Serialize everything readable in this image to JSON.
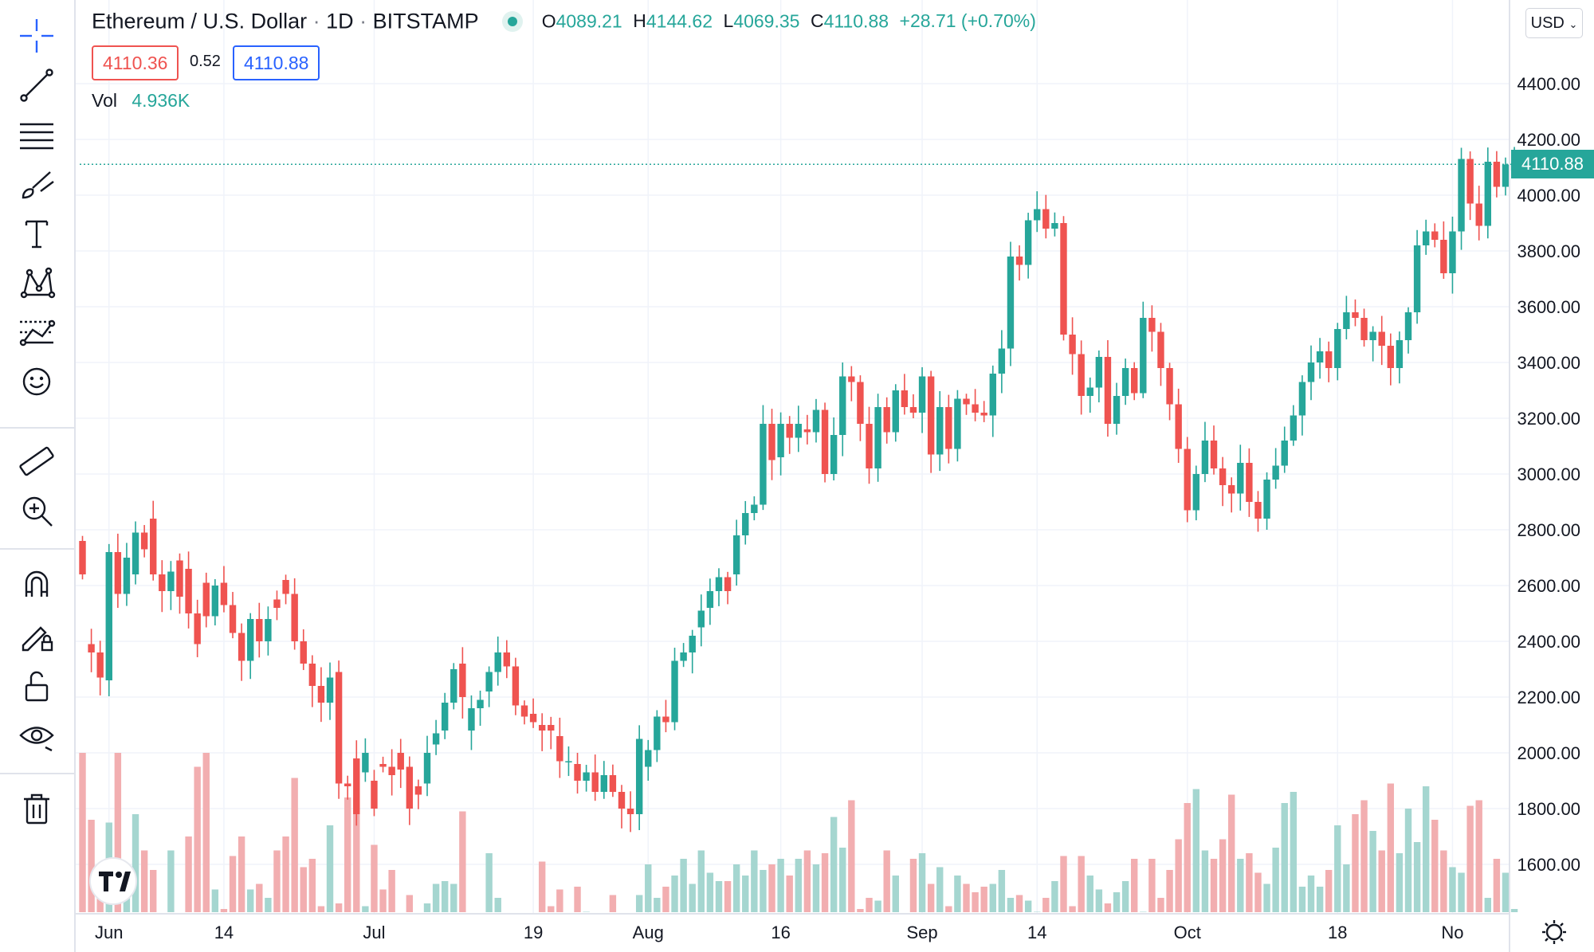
{
  "legend": {
    "symbol": "Ethereum / U.S. Dollar",
    "interval": "1D",
    "exchange": "BITSTAMP",
    "open_label": "O",
    "open": "4089.21",
    "high_label": "H",
    "high": "4144.62",
    "low_label": "L",
    "low": "4069.35",
    "close_label": "C",
    "close": "4110.88",
    "change": "+28.71 (+0.70%)",
    "bid": "4110.36",
    "spread": "0.52",
    "ask": "4110.88",
    "vol_label": "Vol",
    "vol_value": "4.936K"
  },
  "price_axis": {
    "currency": "USD",
    "last_price": "4110.88"
  },
  "colors": {
    "up": "#26a69a",
    "down": "#ef5350",
    "up_vol": "#a5d6d0",
    "down_vol": "#f2aeb0",
    "grid": "#f0f3fa",
    "text": "#131722"
  },
  "toolbar_icons": [
    "crosshair-icon",
    "trend-line-icon",
    "fib-retracement-icon",
    "brush-icon",
    "text-icon",
    "pattern-icon",
    "prediction-icon",
    "emoji-icon",
    "ruler-icon",
    "zoom-in-icon",
    "magnet-icon",
    "lock-drawing-icon",
    "unlock-icon",
    "eye-icon",
    "trash-icon"
  ],
  "chart_data": {
    "type": "candlestick",
    "title": "Ethereum / U.S. Dollar · 1D · BITSTAMP",
    "x_tick_labels": [
      "Jun",
      "14",
      "Jul",
      "19",
      "Aug",
      "16",
      "Sep",
      "14",
      "Oct",
      "18",
      "No"
    ],
    "y_tick_labels": [
      "4400.00",
      "4200.00",
      "4000.00",
      "3800.00",
      "3600.00",
      "3400.00",
      "3200.00",
      "3000.00",
      "2800.00",
      "2600.00",
      "2400.00",
      "2200.00",
      "2000.00",
      "1800.00",
      "1600.00"
    ],
    "ylim": [
      1480,
      4520
    ],
    "first_date": "2021-05-29",
    "last_price": 4110.88,
    "candles": [
      [
        2760,
        2640,
        2000
      ],
      [
        2390,
        2360,
        1760
      ],
      [
        2360,
        2270,
        1480
      ],
      [
        2260,
        2720,
        1750
      ],
      [
        2720,
        2570,
        2000
      ],
      [
        2570,
        2700,
        1480
      ],
      [
        2640,
        2790,
        1780
      ],
      [
        2790,
        2730,
        1650
      ],
      [
        2840,
        2640,
        1580
      ],
      [
        2640,
        2580,
        1350
      ],
      [
        2580,
        2650,
        1650
      ],
      [
        2690,
        2560,
        1320
      ],
      [
        2660,
        2500,
        1700
      ],
      [
        2500,
        2390,
        1950
      ],
      [
        2610,
        2490,
        2000
      ],
      [
        2490,
        2600,
        1510
      ],
      [
        2610,
        2530,
        1440
      ],
      [
        2530,
        2430,
        1630
      ],
      [
        2430,
        2330,
        1700
      ],
      [
        2330,
        2480,
        1510
      ],
      [
        2480,
        2400,
        1530
      ],
      [
        2400,
        2480,
        1480
      ],
      [
        2550,
        2520,
        1650
      ],
      [
        2620,
        2570,
        1700
      ],
      [
        2570,
        2400,
        1910
      ],
      [
        2400,
        2320,
        1590
      ],
      [
        2320,
        2240,
        1620
      ],
      [
        2240,
        2180,
        1450
      ],
      [
        2180,
        2270,
        1740
      ],
      [
        2290,
        1890,
        1460
      ],
      [
        1890,
        1880,
        1840
      ],
      [
        1980,
        1780,
        1840
      ],
      [
        1930,
        2000,
        1450
      ],
      [
        1900,
        1800,
        1670
      ],
      [
        1960,
        1950,
        1510
      ],
      [
        1950,
        1920,
        1580
      ],
      [
        2000,
        1940,
        1400
      ],
      [
        1950,
        1800,
        1490
      ],
      [
        1880,
        1850,
        1400
      ],
      [
        1890,
        2000,
        1460
      ],
      [
        2030,
        2070,
        1530
      ],
      [
        2080,
        2180,
        1540
      ],
      [
        2180,
        2300,
        1530
      ],
      [
        2320,
        2200,
        1790
      ],
      [
        2080,
        2160,
        1410
      ],
      [
        2160,
        2190,
        1300
      ],
      [
        2220,
        2290,
        1640
      ],
      [
        2290,
        2360,
        1480
      ],
      [
        2360,
        2310,
        1370
      ],
      [
        2310,
        2170,
        1360
      ],
      [
        2170,
        2130,
        1350
      ],
      [
        2140,
        2110,
        1310
      ],
      [
        2100,
        2080,
        1610
      ],
      [
        2100,
        2080,
        1450
      ],
      [
        2060,
        1970,
        1510
      ],
      [
        1970,
        1970,
        1370
      ],
      [
        1960,
        1900,
        1520
      ],
      [
        1900,
        1930,
        1430
      ],
      [
        1930,
        1860,
        1310
      ],
      [
        1860,
        1920,
        1400
      ],
      [
        1920,
        1860,
        1490
      ],
      [
        1860,
        1800,
        1280
      ],
      [
        1800,
        1780,
        1350
      ],
      [
        1780,
        2050,
        1490
      ],
      [
        1950,
        2010,
        1600
      ],
      [
        2010,
        2130,
        1480
      ],
      [
        2130,
        2110,
        1520
      ],
      [
        2110,
        2330,
        1560
      ],
      [
        2330,
        2360,
        1620
      ],
      [
        2360,
        2420,
        1530
      ],
      [
        2450,
        2510,
        1650
      ],
      [
        2520,
        2580,
        1570
      ],
      [
        2580,
        2630,
        1540
      ],
      [
        2630,
        2580,
        1540
      ],
      [
        2640,
        2780,
        1600
      ],
      [
        2780,
        2860,
        1560
      ],
      [
        2860,
        2890,
        1650
      ],
      [
        2890,
        3180,
        1580
      ],
      [
        3180,
        3050,
        1600
      ],
      [
        3060,
        3180,
        1620
      ],
      [
        3180,
        3130,
        1560
      ],
      [
        3130,
        3180,
        1620
      ],
      [
        3160,
        3150,
        1650
      ],
      [
        3150,
        3230,
        1600
      ],
      [
        3230,
        3000,
        1640
      ],
      [
        3000,
        3140,
        1770
      ],
      [
        3140,
        3350,
        1660
      ],
      [
        3350,
        3330,
        1830
      ],
      [
        3330,
        3180,
        1440
      ],
      [
        3180,
        3020,
        1480
      ],
      [
        3020,
        3240,
        1470
      ],
      [
        3240,
        3150,
        1650
      ],
      [
        3150,
        3300,
        1560
      ],
      [
        3300,
        3240,
        1340
      ],
      [
        3240,
        3220,
        1620
      ],
      [
        3220,
        3350,
        1640
      ],
      [
        3350,
        3070,
        1530
      ],
      [
        3070,
        3240,
        1590
      ],
      [
        3240,
        3090,
        1450
      ],
      [
        3090,
        3270,
        1560
      ],
      [
        3270,
        3250,
        1530
      ],
      [
        3250,
        3220,
        1500
      ],
      [
        3220,
        3210,
        1520
      ],
      [
        3210,
        3360,
        1530
      ],
      [
        3360,
        3450,
        1580
      ],
      [
        3450,
        3780,
        1480
      ],
      [
        3780,
        3750,
        1490
      ],
      [
        3750,
        3910,
        1470
      ],
      [
        3910,
        3950,
        1430
      ],
      [
        3950,
        3880,
        1480
      ],
      [
        3880,
        3900,
        1540
      ],
      [
        3900,
        3500,
        1630
      ],
      [
        3500,
        3430,
        1450
      ],
      [
        3430,
        3280,
        1630
      ],
      [
        3280,
        3310,
        1560
      ],
      [
        3310,
        3420,
        1510
      ],
      [
        3420,
        3180,
        1460
      ],
      [
        3180,
        3280,
        1500
      ],
      [
        3280,
        3380,
        1540
      ],
      [
        3380,
        3290,
        1620
      ],
      [
        3290,
        3560,
        1430
      ],
      [
        3560,
        3510,
        1620
      ],
      [
        3510,
        3380,
        1480
      ],
      [
        3380,
        3250,
        1580
      ],
      [
        3250,
        3090,
        1690
      ],
      [
        3090,
        2870,
        1820
      ],
      [
        2870,
        3000,
        1870
      ],
      [
        3000,
        3120,
        1650
      ],
      [
        3120,
        3020,
        1620
      ],
      [
        3020,
        2960,
        1690
      ],
      [
        2960,
        2930,
        1850
      ],
      [
        2930,
        3040,
        1620
      ],
      [
        3040,
        2900,
        1640
      ],
      [
        2900,
        2840,
        1570
      ],
      [
        2840,
        2980,
        1530
      ],
      [
        2980,
        3030,
        1660
      ],
      [
        3030,
        3120,
        1820
      ],
      [
        3120,
        3210,
        1860
      ],
      [
        3210,
        3330,
        1520
      ],
      [
        3330,
        3400,
        1560
      ],
      [
        3400,
        3440,
        1520
      ],
      [
        3440,
        3380,
        1580
      ],
      [
        3380,
        3520,
        1740
      ],
      [
        3520,
        3580,
        1600
      ],
      [
        3580,
        3560,
        1780
      ],
      [
        3560,
        3480,
        1830
      ],
      [
        3480,
        3510,
        1720
      ],
      [
        3510,
        3460,
        1650
      ],
      [
        3460,
        3380,
        1890
      ],
      [
        3380,
        3480,
        1640
      ],
      [
        3480,
        3580,
        1800
      ],
      [
        3580,
        3820,
        1680
      ],
      [
        3820,
        3870,
        1880
      ],
      [
        3870,
        3840,
        1760
      ],
      [
        3840,
        3720,
        1650
      ],
      [
        3720,
        3870,
        1590
      ],
      [
        3870,
        4130,
        1570
      ],
      [
        4130,
        3970,
        1810
      ],
      [
        3970,
        3890,
        1830
      ],
      [
        3890,
        4120,
        1480
      ],
      [
        4120,
        4030,
        1620
      ],
      [
        4030,
        4110,
        1570
      ],
      [
        4089,
        4111,
        1440
      ]
    ]
  }
}
